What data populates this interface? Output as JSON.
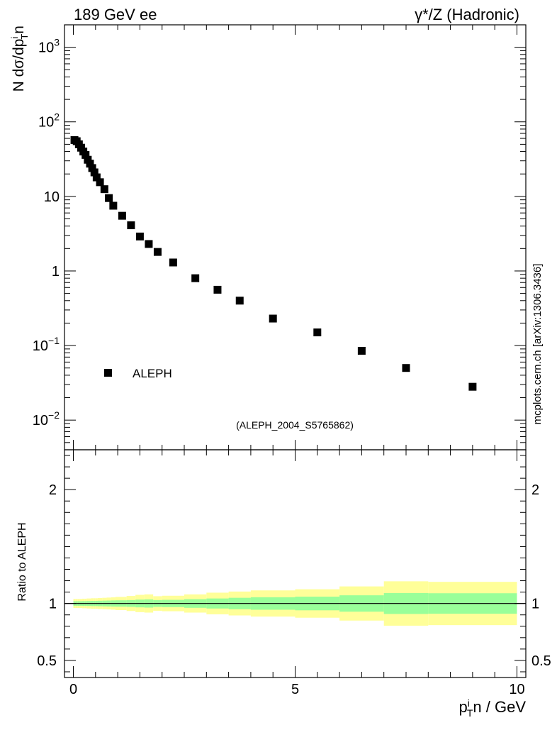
{
  "header": {
    "left": "189 GeV ee",
    "right": "γ*/Z (Hadronic)"
  },
  "side_label": "mcplots.cern.ch [arXiv:1306.3436]",
  "colors": {
    "band_outer": "#ffff99",
    "band_inner": "#99ff99",
    "marker": "#000000",
    "watermark": "#888888"
  },
  "chart_data": [
    {
      "type": "scatter",
      "panel": "main",
      "title": "",
      "ylabel": "N dσ/dp_T^in",
      "yscale": "log",
      "ylim": [
        0.004,
        2000
      ],
      "xlim": [
        -0.2,
        10.2
      ],
      "ytick_labels": [
        "10^-2",
        "10^-1",
        "1",
        "10",
        "10^2",
        "10^3"
      ],
      "legend": [
        {
          "name": "ALEPH",
          "marker": "square"
        }
      ],
      "legend_position": "lower-left",
      "watermark": "(ALEPH_2004_S5765862)",
      "series": [
        {
          "name": "ALEPH",
          "x": [
            0.025,
            0.075,
            0.125,
            0.175,
            0.225,
            0.275,
            0.325,
            0.375,
            0.425,
            0.475,
            0.525,
            0.6,
            0.7,
            0.8,
            0.9,
            1.1,
            1.3,
            1.5,
            1.7,
            1.9,
            2.25,
            2.75,
            3.25,
            3.75,
            4.5,
            5.5,
            6.5,
            7.5,
            9.0
          ],
          "y": [
            57,
            55,
            50,
            45,
            40,
            36,
            31,
            27.5,
            24,
            21,
            18,
            15.5,
            12.5,
            9.5,
            7.5,
            5.5,
            4.1,
            2.9,
            2.3,
            1.8,
            1.3,
            0.8,
            0.56,
            0.4,
            0.23,
            0.15,
            0.085,
            0.05,
            0.028
          ]
        }
      ]
    },
    {
      "type": "area",
      "panel": "ratio",
      "ylabel": "Ratio to ALEPH",
      "xlabel": "p_T^in / GeV",
      "ylim": [
        0.35,
        2.35
      ],
      "xlim": [
        -0.2,
        10.2
      ],
      "xticks": [
        0,
        5,
        10
      ],
      "xtick_labels": [
        "0",
        "5",
        "10"
      ],
      "yticks": [
        0.5,
        1,
        2
      ],
      "ytick_labels": [
        "0.5",
        "1",
        "2"
      ],
      "reference_line": 1.0,
      "bins": [
        {
          "x0": 0.0,
          "x1": 0.05,
          "yellow": 0.04,
          "green": 0.02
        },
        {
          "x0": 0.05,
          "x1": 0.1,
          "yellow": 0.04,
          "green": 0.02
        },
        {
          "x0": 0.1,
          "x1": 0.15,
          "yellow": 0.04,
          "green": 0.02
        },
        {
          "x0": 0.15,
          "x1": 0.2,
          "yellow": 0.04,
          "green": 0.02
        },
        {
          "x0": 0.2,
          "x1": 0.25,
          "yellow": 0.042,
          "green": 0.021
        },
        {
          "x0": 0.25,
          "x1": 0.3,
          "yellow": 0.042,
          "green": 0.021
        },
        {
          "x0": 0.3,
          "x1": 0.35,
          "yellow": 0.044,
          "green": 0.022
        },
        {
          "x0": 0.35,
          "x1": 0.4,
          "yellow": 0.044,
          "green": 0.022
        },
        {
          "x0": 0.4,
          "x1": 0.45,
          "yellow": 0.046,
          "green": 0.023
        },
        {
          "x0": 0.45,
          "x1": 0.5,
          "yellow": 0.046,
          "green": 0.023
        },
        {
          "x0": 0.5,
          "x1": 0.55,
          "yellow": 0.046,
          "green": 0.023
        },
        {
          "x0": 0.55,
          "x1": 0.65,
          "yellow": 0.048,
          "green": 0.024
        },
        {
          "x0": 0.65,
          "x1": 0.75,
          "yellow": 0.05,
          "green": 0.025
        },
        {
          "x0": 0.75,
          "x1": 0.85,
          "yellow": 0.052,
          "green": 0.026
        },
        {
          "x0": 0.85,
          "x1": 0.95,
          "yellow": 0.054,
          "green": 0.027
        },
        {
          "x0": 0.95,
          "x1": 1.2,
          "yellow": 0.058,
          "green": 0.028
        },
        {
          "x0": 1.2,
          "x1": 1.4,
          "yellow": 0.066,
          "green": 0.03
        },
        {
          "x0": 1.4,
          "x1": 1.6,
          "yellow": 0.076,
          "green": 0.034
        },
        {
          "x0": 1.6,
          "x1": 1.8,
          "yellow": 0.08,
          "green": 0.036
        },
        {
          "x0": 1.8,
          "x1": 2.0,
          "yellow": 0.064,
          "green": 0.03
        },
        {
          "x0": 2.0,
          "x1": 2.5,
          "yellow": 0.068,
          "green": 0.032
        },
        {
          "x0": 2.5,
          "x1": 3.0,
          "yellow": 0.08,
          "green": 0.038
        },
        {
          "x0": 3.0,
          "x1": 3.5,
          "yellow": 0.095,
          "green": 0.044
        },
        {
          "x0": 3.5,
          "x1": 4.0,
          "yellow": 0.105,
          "green": 0.05
        },
        {
          "x0": 4.0,
          "x1": 5.0,
          "yellow": 0.115,
          "green": 0.055
        },
        {
          "x0": 5.0,
          "x1": 6.0,
          "yellow": 0.125,
          "green": 0.06
        },
        {
          "x0": 6.0,
          "x1": 7.0,
          "yellow": 0.15,
          "green": 0.072
        },
        {
          "x0": 7.0,
          "x1": 8.0,
          "yellow": 0.195,
          "green": 0.092
        },
        {
          "x0": 8.0,
          "x1": 10.0,
          "yellow": 0.19,
          "green": 0.09
        }
      ]
    }
  ]
}
